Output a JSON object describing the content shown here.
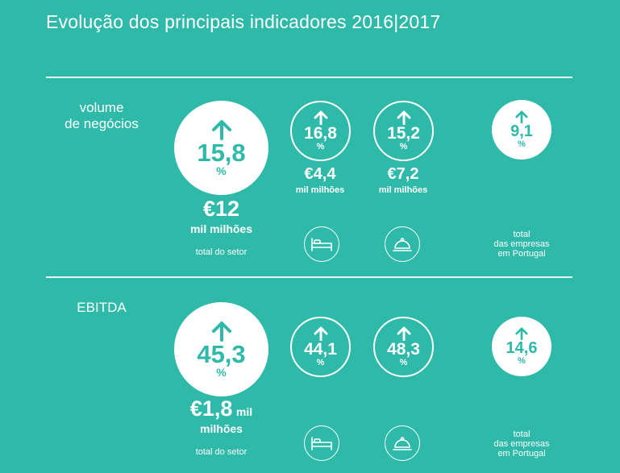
{
  "title": "Evolução dos principais indicadores 2016|2017",
  "colors": {
    "background": "#2fb9a9",
    "foreground": "#ffffff"
  },
  "sections": [
    {
      "label_line1": "volume",
      "label_line2": "de negócios",
      "sector_pct": "15,8",
      "pct_sign": "%",
      "sector_value": "€12",
      "sector_unit": "mil milhões",
      "sector_caption": "total do setor",
      "lodging_pct": "16,8",
      "lodging_value": "€4,4",
      "lodging_unit": "mil milhões",
      "food_pct": "15,2",
      "food_value": "€7,2",
      "food_unit": "mil milhões",
      "total_pct": "9,1",
      "total_caption_1": "total",
      "total_caption_2": "das empresas",
      "total_caption_3": "em Portugal"
    },
    {
      "label_line1": "EBITDA",
      "sector_pct": "45,3",
      "pct_sign": "%",
      "sector_value": "€1,8",
      "sector_unit_inline": "mil",
      "sector_unit_line2": "milhões",
      "sector_caption": "total do setor",
      "lodging_pct": "44,1",
      "food_pct": "48,3",
      "total_pct": "14,6",
      "total_caption_1": "total",
      "total_caption_2": "das empresas",
      "total_caption_3": "em Portugal"
    }
  ],
  "icons": {
    "up_arrow": "arrow-up-icon",
    "lodging": "bed-icon",
    "food": "cloche-icon"
  }
}
